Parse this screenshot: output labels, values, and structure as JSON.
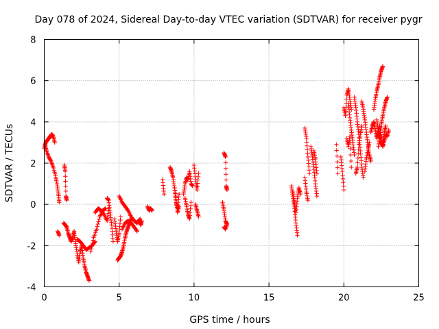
{
  "chart_data": {
    "type": "scatter",
    "title": "Day 078 of 2024, Sidereal Day-to-day VTEC variation (SDTVAR) for receiver pygr",
    "xlabel": "GPS time / hours",
    "ylabel": "SDTVAR / TECUs",
    "xlim": [
      0,
      25
    ],
    "ylim": [
      -4,
      8
    ],
    "xticks": [
      0,
      5,
      10,
      15,
      20,
      25
    ],
    "yticks": [
      -4,
      -2,
      0,
      2,
      4,
      6,
      8
    ],
    "grid": true,
    "marker": "+",
    "color": "#ff0000",
    "segments": [
      {
        "x": [
          0.0,
          0.1,
          0.2,
          0.3,
          0.4,
          0.5,
          0.6,
          0.7
        ],
        "y": [
          2.7,
          3.0,
          3.1,
          3.2,
          3.3,
          3.4,
          3.3,
          3.0
        ]
      },
      {
        "x": [
          0.05,
          0.15,
          0.3,
          0.45,
          0.6,
          0.75,
          0.85,
          0.95,
          1.0
        ],
        "y": [
          2.9,
          2.6,
          2.3,
          2.1,
          1.8,
          1.4,
          1.0,
          0.5,
          0.1
        ]
      },
      {
        "x": [
          0.9,
          1.0
        ],
        "y": [
          -1.3,
          -1.5
        ]
      },
      {
        "x": [
          1.35,
          1.4,
          1.45,
          1.5
        ],
        "y": [
          1.9,
          1.6,
          0.4,
          0.2
        ]
      },
      {
        "x": [
          1.3,
          1.4,
          1.5,
          1.6,
          1.7,
          1.8,
          1.9,
          2.0
        ],
        "y": [
          -0.9,
          -1.0,
          -1.1,
          -1.4,
          -1.6,
          -1.8,
          -1.6,
          -1.3
        ]
      },
      {
        "x": [
          2.0,
          2.1,
          2.2,
          2.3,
          2.4,
          2.5,
          2.6,
          2.7,
          2.8,
          2.9,
          3.0
        ],
        "y": [
          -1.4,
          -1.9,
          -2.4,
          -2.8,
          -2.3,
          -2.0,
          -2.6,
          -3.0,
          -3.3,
          -3.5,
          -3.7
        ]
      },
      {
        "x": [
          2.2,
          2.4,
          2.6,
          2.8,
          3.0,
          3.2,
          3.4
        ],
        "y": [
          -1.7,
          -1.8,
          -2.0,
          -2.2,
          -2.1,
          -2.0,
          -1.8
        ]
      },
      {
        "x": [
          3.1,
          3.3,
          3.5,
          3.7,
          3.9,
          4.1
        ],
        "y": [
          -2.3,
          -1.6,
          -1.2,
          -0.6,
          -0.3,
          -0.2
        ]
      },
      {
        "x": [
          3.4,
          3.6,
          3.8,
          4.0,
          4.2,
          4.3
        ],
        "y": [
          -0.4,
          -0.2,
          -0.3,
          -0.5,
          -0.8,
          -0.2
        ]
      },
      {
        "x": [
          4.2,
          4.3,
          4.4,
          4.5,
          4.6
        ],
        "y": [
          0.3,
          0.2,
          -0.4,
          -1.0,
          -1.8
        ]
      },
      {
        "x": [
          4.7,
          4.8,
          4.9,
          5.0,
          5.1
        ],
        "y": [
          -0.7,
          -1.3,
          -1.8,
          -1.4,
          -0.6
        ]
      },
      {
        "x": [
          4.9,
          5.0,
          5.1,
          5.2,
          5.3,
          5.4,
          5.5,
          5.6,
          5.7,
          5.8
        ],
        "y": [
          -2.7,
          -2.6,
          -2.5,
          -2.3,
          -2.0,
          -1.6,
          -1.3,
          -1.1,
          -0.9,
          -0.7
        ]
      },
      {
        "x": [
          5.0,
          5.2,
          5.4,
          5.6,
          5.8,
          6.0,
          6.2,
          6.4
        ],
        "y": [
          0.4,
          0.1,
          -0.1,
          -0.3,
          -0.6,
          -0.8,
          -0.9,
          -0.7
        ]
      },
      {
        "x": [
          5.2,
          5.4,
          5.6,
          5.8,
          6.0,
          6.2
        ],
        "y": [
          -1.2,
          -0.9,
          -0.8,
          -0.9,
          -1.1,
          -1.3
        ]
      },
      {
        "x": [
          6.4,
          6.45,
          6.5
        ],
        "y": [
          -0.9,
          -1.0,
          -0.8
        ]
      },
      {
        "x": [
          6.9,
          7.0,
          7.1,
          7.2
        ],
        "y": [
          -0.1,
          -0.3,
          -0.2,
          -0.3
        ]
      },
      {
        "x": [
          7.9,
          8.0
        ],
        "y": [
          1.2,
          0.5
        ]
      },
      {
        "x": [
          8.4,
          8.5,
          8.6,
          8.7,
          8.8,
          8.9,
          9.0
        ],
        "y": [
          1.8,
          1.6,
          1.3,
          0.8,
          0.2,
          -0.4,
          -0.1
        ]
      },
      {
        "x": [
          8.7,
          8.8,
          8.9,
          9.0
        ],
        "y": [
          0.8,
          0.1,
          -0.2,
          0.5
        ]
      },
      {
        "x": [
          9.3,
          9.4,
          9.5,
          9.6,
          9.7,
          9.8,
          9.9
        ],
        "y": [
          0.5,
          1.0,
          1.3,
          1.2,
          1.6,
          1.0,
          0.9
        ]
      },
      {
        "x": [
          9.4,
          9.5,
          9.6,
          9.7,
          9.8
        ],
        "y": [
          0.3,
          -0.1,
          -0.5,
          -0.7,
          0.1
        ]
      },
      {
        "x": [
          10.0,
          10.1,
          10.2,
          10.3
        ],
        "y": [
          1.9,
          1.2,
          0.7,
          1.5
        ]
      },
      {
        "x": [
          10.1,
          10.2,
          10.3
        ],
        "y": [
          0.0,
          -0.3,
          -0.6
        ]
      },
      {
        "x": [
          12.0,
          12.1,
          12.15,
          12.2
        ],
        "y": [
          2.5,
          2.3,
          0.9,
          0.7
        ]
      },
      {
        "x": [
          11.9,
          12.0,
          12.1,
          12.2
        ],
        "y": [
          0.1,
          -0.3,
          -0.8,
          -1.0
        ]
      },
      {
        "x": [
          12.0,
          12.1,
          12.2
        ],
        "y": [
          -1.1,
          -1.2,
          -0.9
        ]
      },
      {
        "x": [
          16.5,
          16.6,
          16.7,
          16.8,
          16.9
        ],
        "y": [
          0.9,
          0.4,
          -0.2,
          -0.9,
          -1.5
        ]
      },
      {
        "x": [
          16.6,
          16.7,
          16.8,
          16.9,
          17.0,
          17.1
        ],
        "y": [
          0.6,
          0.1,
          -0.4,
          0.3,
          0.8,
          0.5
        ]
      },
      {
        "x": [
          17.4,
          17.5,
          17.6,
          17.7
        ],
        "y": [
          3.7,
          3.2,
          2.3,
          1.5
        ]
      },
      {
        "x": [
          17.4,
          17.5,
          17.6
        ],
        "y": [
          1.3,
          0.6,
          0.2
        ]
      },
      {
        "x": [
          17.8,
          17.9,
          18.0,
          18.1,
          18.2
        ],
        "y": [
          2.8,
          2.3,
          1.7,
          1.0,
          0.4
        ]
      },
      {
        "x": [
          18.0,
          18.1,
          18.2
        ],
        "y": [
          2.6,
          2.2,
          1.5
        ]
      },
      {
        "x": [
          19.5,
          19.6
        ],
        "y": [
          2.9,
          1.5
        ]
      },
      {
        "x": [
          19.8,
          19.9,
          20.0
        ],
        "y": [
          2.3,
          1.6,
          0.7
        ]
      },
      {
        "x": [
          20.0,
          20.1,
          20.2,
          20.3,
          20.4,
          20.5
        ],
        "y": [
          4.7,
          4.3,
          5.3,
          5.6,
          5.1,
          4.6
        ]
      },
      {
        "x": [
          20.2,
          20.3,
          20.4,
          20.5
        ],
        "y": [
          3.2,
          2.8,
          3.3,
          1.8
        ]
      },
      {
        "x": [
          20.3,
          20.4,
          20.5,
          20.6,
          20.7
        ],
        "y": [
          4.9,
          4.2,
          3.6,
          3.0,
          2.4
        ]
      },
      {
        "x": [
          20.7,
          20.8,
          20.9,
          21.0,
          21.1,
          21.2,
          21.3
        ],
        "y": [
          5.2,
          4.7,
          4.0,
          3.4,
          2.6,
          1.8,
          1.3
        ]
      },
      {
        "x": [
          20.8,
          20.9,
          21.0,
          21.1,
          21.2
        ],
        "y": [
          1.5,
          1.8,
          2.9,
          3.4,
          3.8
        ]
      },
      {
        "x": [
          21.2,
          21.3,
          21.4,
          21.5,
          21.6,
          21.7,
          21.8
        ],
        "y": [
          5.0,
          4.6,
          4.1,
          3.5,
          2.9,
          2.4,
          2.1
        ]
      },
      {
        "x": [
          21.4,
          21.5,
          21.6,
          21.7
        ],
        "y": [
          1.6,
          2.2,
          2.6,
          3.0
        ]
      },
      {
        "x": [
          21.8,
          21.9,
          22.0,
          22.1,
          22.2,
          22.3,
          22.4,
          22.5
        ],
        "y": [
          3.5,
          3.8,
          4.0,
          3.6,
          3.2,
          3.5,
          3.8,
          3.3
        ]
      },
      {
        "x": [
          22.0,
          22.1,
          22.2,
          22.3,
          22.4,
          22.5,
          22.6
        ],
        "y": [
          4.6,
          5.1,
          5.5,
          5.8,
          6.2,
          6.5,
          6.7
        ]
      },
      {
        "x": [
          22.3,
          22.4,
          22.5,
          22.6,
          22.7,
          22.8,
          22.9
        ],
        "y": [
          2.8,
          3.2,
          3.9,
          4.3,
          4.7,
          5.0,
          5.2
        ]
      },
      {
        "x": [
          22.5,
          22.6,
          22.7,
          22.8,
          22.9,
          23.0
        ],
        "y": [
          3.0,
          2.8,
          3.1,
          3.4,
          3.3,
          3.6
        ]
      },
      {
        "x": [
          22.2,
          22.3,
          22.4,
          22.5,
          22.6,
          22.7,
          22.8
        ],
        "y": [
          4.1,
          3.6,
          3.3,
          3.0,
          2.9,
          3.5,
          3.8
        ]
      }
    ]
  }
}
